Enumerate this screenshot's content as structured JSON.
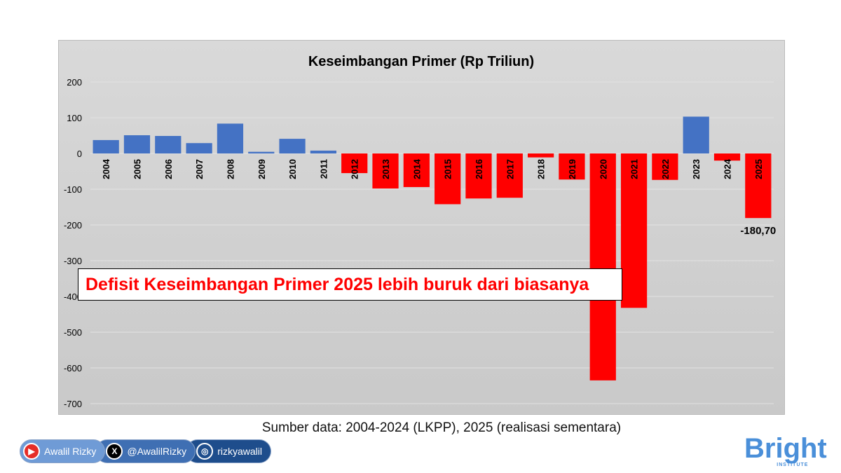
{
  "chart_data": {
    "type": "bar",
    "title": "Keseimbangan Primer (Rp Triliun)",
    "categories": [
      "2004",
      "2005",
      "2006",
      "2007",
      "2008",
      "2009",
      "2010",
      "2011",
      "2012",
      "2013",
      "2014",
      "2015",
      "2016",
      "2017",
      "2018",
      "2019",
      "2020",
      "2021",
      "2022",
      "2023",
      "2024",
      "2025"
    ],
    "values": [
      37.5,
      51,
      49,
      29,
      83.5,
      4.6,
      41,
      8,
      -55,
      -98,
      -94,
      -142,
      -126,
      -124,
      -11,
      -73,
      -635,
      -432,
      -74,
      103,
      -20,
      -180.7
    ],
    "ylim": [
      -700,
      200
    ],
    "yticks": [
      "200",
      "100",
      "0",
      "-100",
      "-200",
      "-300",
      "-400",
      "-500",
      "-600",
      "-700"
    ],
    "ytick_values": [
      200,
      100,
      0,
      -100,
      -200,
      -300,
      -400,
      -500,
      -600,
      -700
    ],
    "grid": true,
    "colors": {
      "positive": "#4472c4",
      "negative": "#ff0000"
    },
    "data_label": {
      "category": "2025",
      "text": "-180,70"
    },
    "xlabel": "",
    "ylabel": ""
  },
  "callout": "Defisit Keseimbangan Primer 2025 lebih buruk dari biasanya",
  "source": "Sumber data: 2004-2024 (LKPP), 2025 (realisasi sementara)",
  "social": [
    {
      "icon": "youtube-icon",
      "label": "Awalil Rizky"
    },
    {
      "icon": "x-icon",
      "label": "@AwalilRizky"
    },
    {
      "icon": "instagram-icon",
      "label": "rizkyawalil"
    }
  ],
  "logo": {
    "name": "Bright",
    "sub": "INSTITUTE"
  }
}
